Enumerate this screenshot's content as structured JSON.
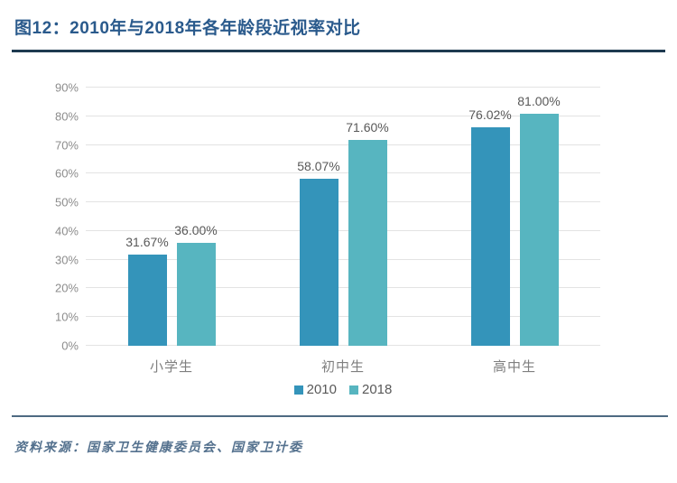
{
  "header": {
    "title": "图12：2010年与2018年各年龄段近视率对比"
  },
  "chart_data": {
    "type": "bar",
    "title": "2010年与2018年各年龄段近视率对比",
    "categories": [
      "小学生",
      "初中生",
      "高中生"
    ],
    "series": [
      {
        "name": "2010",
        "color": "#3494BA",
        "values": [
          31.67,
          58.07,
          76.02
        ],
        "data_labels": [
          "31.67%",
          "58.07%",
          "76.02%"
        ]
      },
      {
        "name": "2018",
        "color": "#57B5C0",
        "values": [
          36.0,
          71.6,
          81.0
        ],
        "data_labels": [
          "36.00%",
          "71.60%",
          "81.00%"
        ]
      }
    ],
    "xlabel": "",
    "ylabel": "",
    "ylim": [
      0,
      90
    ],
    "ytick_labels": [
      "0%",
      "10%",
      "20%",
      "30%",
      "40%",
      "50%",
      "60%",
      "70%",
      "80%",
      "90%"
    ],
    "grid": true,
    "legend_position": "bottom"
  },
  "footer": {
    "source": "资料来源：国家卫生健康委员会、国家卫计委"
  },
  "colors": {
    "title": "#2A5A8C",
    "title_rule": "#1E3A50",
    "gridline": "#E3E3E3",
    "tick_text": "#8C8C8C",
    "data_label": "#595959",
    "category_label": "#7F7F7F",
    "footer_rule": "#4E6A82",
    "source_text": "#54718E",
    "series_2010": "#3494BA",
    "series_2018": "#57B5C0"
  }
}
